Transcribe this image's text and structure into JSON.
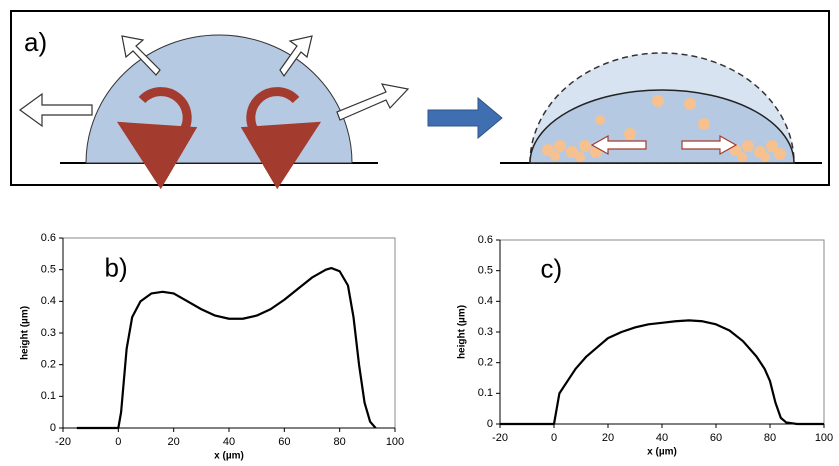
{
  "panel_a": {
    "label": "a)"
  },
  "chart_data": [
    {
      "type": "line",
      "panel_label": "b)",
      "x_label": "x (µm)",
      "y_label": "height (µm)",
      "x": [
        -15,
        0,
        1,
        3,
        5,
        8,
        12,
        16,
        20,
        25,
        30,
        35,
        40,
        45,
        50,
        55,
        60,
        65,
        70,
        75,
        77,
        80,
        83,
        85,
        87,
        89,
        91,
        93
      ],
      "series": [
        {
          "color": "#000000",
          "values": [
            0,
            0,
            0.05,
            0.25,
            0.35,
            0.4,
            0.425,
            0.43,
            0.425,
            0.4,
            0.375,
            0.355,
            0.345,
            0.345,
            0.355,
            0.375,
            0.405,
            0.44,
            0.475,
            0.5,
            0.505,
            0.495,
            0.45,
            0.35,
            0.2,
            0.08,
            0.02,
            0
          ]
        }
      ],
      "xlim": [
        -20,
        100
      ],
      "ylim": [
        0,
        0.6
      ],
      "xticks": [
        -20,
        0,
        20,
        40,
        60,
        80,
        100
      ],
      "yticks": [
        0,
        0.1,
        0.2,
        0.3,
        0.4,
        0.5,
        0.6
      ],
      "grid": false
    },
    {
      "type": "line",
      "panel_label": "c)",
      "x_label": "x (µm)",
      "y_label": "height (µm)",
      "x": [
        -20,
        0,
        1,
        2,
        5,
        8,
        12,
        16,
        20,
        25,
        30,
        35,
        40,
        45,
        50,
        55,
        60,
        65,
        70,
        75,
        78,
        80,
        82,
        84,
        86,
        90,
        100
      ],
      "series": [
        {
          "color": "#000000",
          "values": [
            0,
            0,
            0.05,
            0.1,
            0.14,
            0.18,
            0.22,
            0.25,
            0.28,
            0.3,
            0.315,
            0.325,
            0.33,
            0.335,
            0.338,
            0.335,
            0.325,
            0.305,
            0.27,
            0.22,
            0.18,
            0.14,
            0.07,
            0.02,
            0.005,
            0,
            0
          ]
        }
      ],
      "xlim": [
        -20,
        100
      ],
      "ylim": [
        0,
        0.6
      ],
      "xticks": [
        -20,
        0,
        20,
        40,
        60,
        80,
        100
      ],
      "yticks": [
        0,
        0.1,
        0.2,
        0.3,
        0.4,
        0.5,
        0.6
      ],
      "grid": false
    }
  ]
}
